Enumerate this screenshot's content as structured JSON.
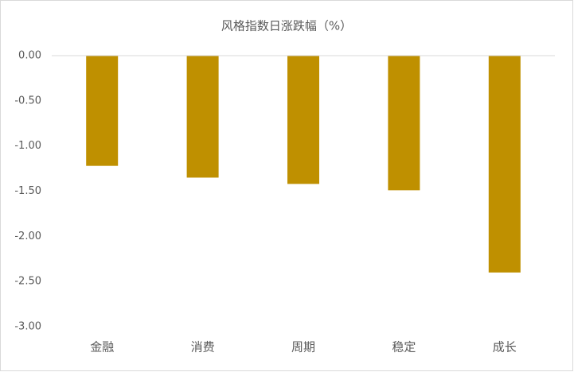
{
  "chart_data": {
    "type": "bar",
    "title": "风格指数日涨跌幅（%）",
    "categories": [
      "金融",
      "消费",
      "周期",
      "稳定",
      "成长"
    ],
    "values": [
      -1.22,
      -1.35,
      -1.42,
      -1.49,
      -2.4
    ],
    "color": "#bf9000",
    "ylim": [
      -3,
      0
    ],
    "yticks": [
      {
        "value": 0,
        "label": "0.00"
      },
      {
        "value": -0.5,
        "label": "-0.50"
      },
      {
        "value": -1,
        "label": "-1.00"
      },
      {
        "value": -1.5,
        "label": "-1.50"
      },
      {
        "value": -2,
        "label": "-2.00"
      },
      {
        "value": -2.5,
        "label": "-2.50"
      },
      {
        "value": -3,
        "label": "-3.00"
      }
    ],
    "grid": false
  }
}
